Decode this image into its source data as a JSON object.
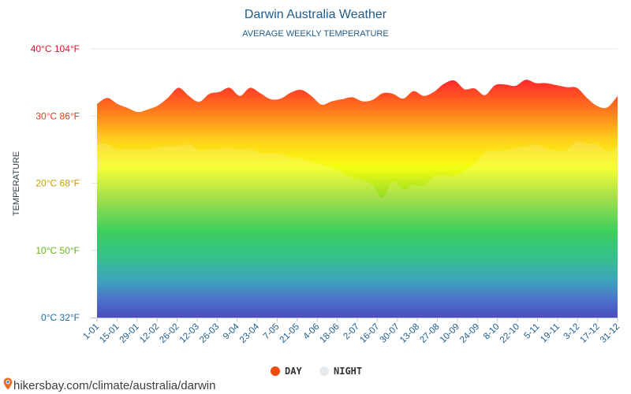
{
  "header": {
    "title": "Darwin Australia Weather",
    "subtitle": "AVERAGE WEEKLY TEMPERATURE"
  },
  "colors": {
    "title": "#1f5c8b",
    "day_legend": "#f04a0c",
    "night_legend": "#e9ecef",
    "grid": "#e6e6e6"
  },
  "legend": {
    "day_label": "DAY",
    "night_label": "NIGHT"
  },
  "source": {
    "icon": "map-pin-icon",
    "text": "hikersbay.com/climate/australia/darwin"
  },
  "chart_data": {
    "type": "area",
    "title": "Darwin Australia Weather",
    "subtitle": "AVERAGE WEEKLY TEMPERATURE",
    "ylabel": "TEMPERATURE",
    "ylim": [
      0,
      40
    ],
    "grid": true,
    "legend_position": "bottom",
    "y_ticks": [
      {
        "value": 0,
        "label": "0°C 32°F",
        "color": "#1a6aa8"
      },
      {
        "value": 10,
        "label": "10°C 50°F",
        "color": "#6ab31e"
      },
      {
        "value": 20,
        "label": "20°C 68°F",
        "color": "#c8a000"
      },
      {
        "value": 30,
        "label": "30°C 86°F",
        "color": "#e0401c"
      },
      {
        "value": 40,
        "label": "40°C 104°F",
        "color": "#e8102c"
      }
    ],
    "x_ticks": [
      "1-01",
      "15-01",
      "29-01",
      "12-02",
      "26-02",
      "12-03",
      "26-03",
      "9-04",
      "23-04",
      "7-05",
      "21-05",
      "4-06",
      "18-06",
      "2-07",
      "16-07",
      "30-07",
      "13-08",
      "27-08",
      "10-09",
      "24-09",
      "8-10",
      "22-10",
      "5-11",
      "19-11",
      "3-12",
      "17-12",
      "31-12"
    ],
    "series": [
      {
        "name": "DAY",
        "values": [
          31.8,
          32.7,
          31.8,
          31.2,
          30.6,
          31.0,
          31.6,
          32.8,
          34.2,
          33.0,
          32.1,
          33.3,
          33.6,
          34.2,
          33.0,
          34.2,
          33.4,
          32.5,
          32.6,
          33.5,
          33.9,
          33.0,
          31.7,
          32.2,
          32.5,
          32.8,
          32.2,
          32.4,
          33.4,
          33.3,
          32.6,
          33.7,
          33.0,
          33.6,
          34.8,
          35.3,
          34.0,
          34.1,
          33.1,
          34.6,
          34.7,
          34.5,
          35.4,
          34.9,
          34.9,
          34.6,
          34.3,
          34.2,
          32.7,
          31.5,
          31.3,
          33.0
        ]
      },
      {
        "name": "NIGHT",
        "values": [
          25.8,
          25.8,
          25.0,
          25.1,
          25.0,
          25.0,
          25.3,
          25.5,
          25.5,
          25.8,
          24.9,
          25.0,
          25.1,
          25.2,
          25.0,
          25.1,
          24.5,
          24.5,
          24.4,
          23.8,
          23.7,
          23.2,
          22.8,
          22.3,
          21.6,
          20.8,
          20.5,
          19.7,
          17.8,
          20.3,
          19.0,
          19.8,
          19.6,
          21.0,
          21.2,
          21.1,
          21.8,
          22.9,
          24.5,
          24.8,
          24.9,
          25.2,
          25.5,
          25.7,
          25.2,
          24.8,
          24.9,
          26.2,
          25.9,
          25.8,
          24.8,
          25.5
        ]
      }
    ]
  }
}
